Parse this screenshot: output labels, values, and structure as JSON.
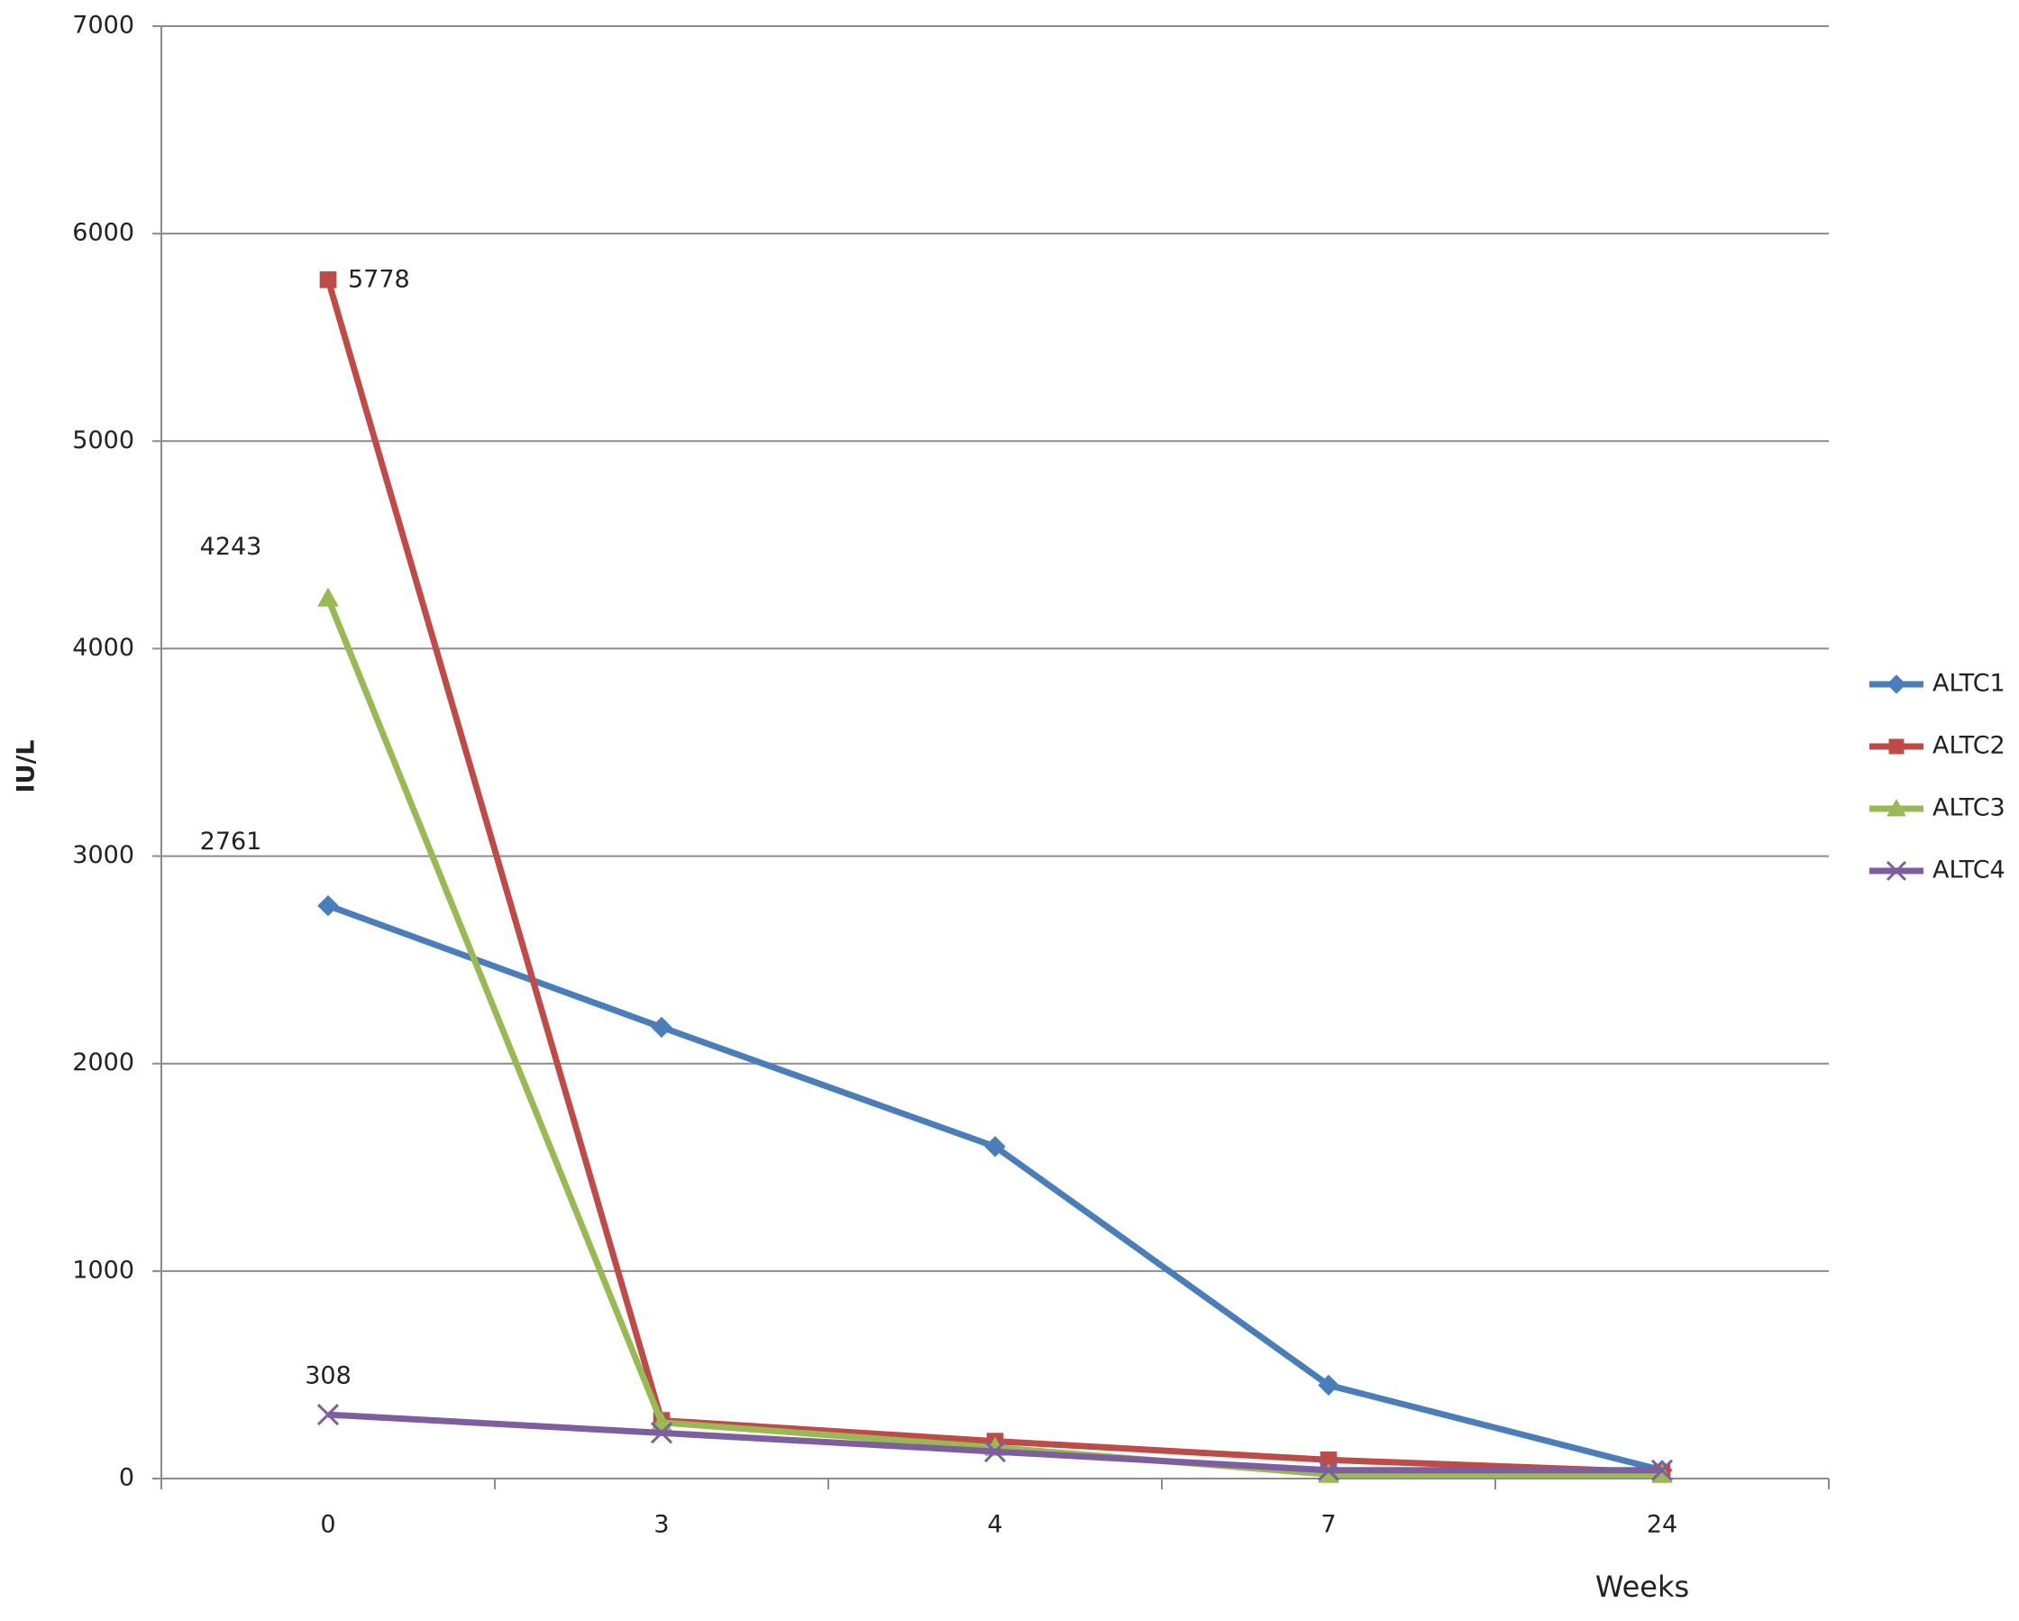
{
  "chart_data": {
    "type": "line",
    "x_label": "Weeks",
    "y_label": "IU/L",
    "categories": [
      "0",
      "3",
      "4",
      "7",
      "24"
    ],
    "series": [
      {
        "name": "ALTC1",
        "color": "#4a7ebb",
        "marker": "diamond",
        "values": [
          2761,
          2175,
          1600,
          450,
          40
        ]
      },
      {
        "name": "ALTC2",
        "color": "#be4b48",
        "marker": "square",
        "values": [
          5778,
          280,
          180,
          90,
          30
        ]
      },
      {
        "name": "ALTC3",
        "color": "#98b954",
        "marker": "triangle",
        "values": [
          4243,
          270,
          150,
          20,
          20
        ]
      },
      {
        "name": "ALTC4",
        "color": "#7d5fa0",
        "marker": "x",
        "values": [
          308,
          220,
          130,
          40,
          40
        ]
      }
    ],
    "ylim": [
      0,
      7000
    ],
    "yticks": [
      0,
      1000,
      2000,
      3000,
      4000,
      5000,
      6000,
      7000
    ],
    "grid": true,
    "legend": "right"
  }
}
